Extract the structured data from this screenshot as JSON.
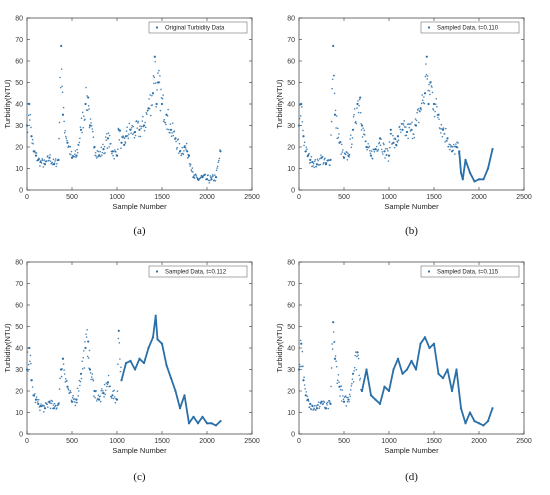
{
  "colors": {
    "series": "#2a6fa8",
    "axis": "#333333",
    "legend_border": "#555555"
  },
  "chart_data": [
    {
      "type": "scatter",
      "caption": "(a)",
      "xlabel": "Sample Number",
      "ylabel": "Turbidity(NTU)",
      "xlim": [
        0,
        2500
      ],
      "ylim": [
        0,
        80
      ],
      "xticks": [
        0,
        500,
        1000,
        1500,
        2000,
        2500
      ],
      "yticks": [
        0,
        10,
        20,
        30,
        40,
        50,
        60,
        70,
        80
      ],
      "legend": "top-right",
      "series": [
        {
          "name": "Original Turbidity Data",
          "style": "markers",
          "x": [
            0,
            25,
            50,
            75,
            100,
            125,
            150,
            200,
            250,
            300,
            350,
            380,
            400,
            450,
            500,
            550,
            600,
            650,
            680,
            700,
            750,
            800,
            850,
            900,
            950,
            1000,
            1020,
            1050,
            1080,
            1100,
            1150,
            1200,
            1250,
            1300,
            1350,
            1400,
            1420,
            1440,
            1460,
            1500,
            1550,
            1600,
            1650,
            1700,
            1750,
            1780,
            1800,
            1850,
            1900,
            1950,
            2000,
            2050,
            2100,
            2150
          ],
          "y": [
            30,
            40,
            25,
            18,
            16,
            14,
            13,
            12,
            15,
            12,
            14,
            67,
            35,
            22,
            15,
            16,
            28,
            40,
            43,
            30,
            20,
            16,
            19,
            24,
            18,
            16,
            28,
            22,
            21,
            25,
            28,
            27,
            28,
            30,
            38,
            45,
            62,
            40,
            50,
            40,
            35,
            28,
            24,
            18,
            20,
            18,
            16,
            6,
            5,
            6,
            5,
            5,
            6,
            18
          ]
        }
      ]
    },
    {
      "type": "scatter",
      "caption": "(b)",
      "xlabel": "Sample Number",
      "ylabel": "Turbidity(NTU)",
      "xlim": [
        0,
        2500
      ],
      "ylim": [
        0,
        80
      ],
      "xticks": [
        0,
        500,
        1000,
        1500,
        2000,
        2500
      ],
      "yticks": [
        0,
        10,
        20,
        30,
        40,
        50,
        60,
        70,
        80
      ],
      "legend": "top-right",
      "series": [
        {
          "name": "Sampled Data, t=0.110",
          "style": "markers+line-tail",
          "line_from_x": 1780,
          "x": [
            0,
            25,
            50,
            75,
            100,
            125,
            150,
            200,
            250,
            300,
            350,
            380,
            400,
            450,
            500,
            550,
            600,
            650,
            680,
            700,
            750,
            800,
            850,
            900,
            950,
            1000,
            1020,
            1050,
            1080,
            1100,
            1150,
            1200,
            1250,
            1300,
            1350,
            1400,
            1420,
            1440,
            1460,
            1500,
            1550,
            1600,
            1650,
            1700,
            1750,
            1780,
            1800,
            1820,
            1850,
            1900,
            1950,
            2000,
            2050,
            2100,
            2150
          ],
          "y": [
            30,
            40,
            25,
            18,
            16,
            14,
            13,
            12,
            15,
            12,
            14,
            67,
            35,
            22,
            15,
            16,
            28,
            40,
            43,
            30,
            20,
            16,
            19,
            24,
            18,
            16,
            28,
            22,
            21,
            25,
            28,
            27,
            28,
            30,
            38,
            45,
            62,
            40,
            50,
            40,
            35,
            28,
            24,
            18,
            20,
            18,
            8,
            5,
            14,
            8,
            4,
            5,
            5,
            10,
            19
          ]
        }
      ]
    },
    {
      "type": "scatter",
      "caption": "(c)",
      "xlabel": "Sample Number",
      "ylabel": "Turbidity(NTU)",
      "xlim": [
        0,
        2500
      ],
      "ylim": [
        0,
        80
      ],
      "xticks": [
        0,
        500,
        1000,
        1500,
        2000,
        2500
      ],
      "yticks": [
        0,
        10,
        20,
        30,
        40,
        50,
        60,
        70,
        80
      ],
      "legend": "top-right",
      "series": [
        {
          "name": "Sampled Data, t=0.112",
          "style": "markers+line-tail",
          "line_from_x": 1050,
          "x": [
            0,
            25,
            50,
            75,
            100,
            125,
            150,
            200,
            250,
            300,
            350,
            380,
            400,
            450,
            500,
            550,
            600,
            650,
            680,
            700,
            750,
            800,
            850,
            900,
            950,
            1000,
            1020,
            1050,
            1100,
            1150,
            1200,
            1250,
            1300,
            1350,
            1400,
            1430,
            1450,
            1500,
            1550,
            1600,
            1650,
            1700,
            1750,
            1800,
            1850,
            1900,
            1950,
            2000,
            2050,
            2100,
            2150
          ],
          "y": [
            30,
            40,
            25,
            18,
            16,
            14,
            13,
            12,
            15,
            12,
            14,
            30,
            35,
            22,
            15,
            16,
            28,
            40,
            43,
            30,
            20,
            16,
            19,
            24,
            18,
            16,
            48,
            25,
            33,
            34,
            30,
            35,
            33,
            40,
            45,
            55,
            44,
            42,
            32,
            26,
            20,
            12,
            18,
            5,
            8,
            5,
            8,
            5,
            5,
            4,
            6
          ]
        }
      ]
    },
    {
      "type": "scatter",
      "caption": "(d)",
      "xlabel": "Sample Number",
      "ylabel": "Turbidity(NTU)",
      "xlim": [
        0,
        2500
      ],
      "ylim": [
        0,
        80
      ],
      "xticks": [
        0,
        500,
        1000,
        1500,
        2000,
        2500
      ],
      "yticks": [
        0,
        10,
        20,
        30,
        40,
        50,
        60,
        70,
        80
      ],
      "legend": "top-right",
      "series": [
        {
          "name": "Sampled Data, t=0.115",
          "style": "markers+line-tail",
          "line_from_x": 700,
          "x": [
            0,
            25,
            50,
            75,
            100,
            125,
            150,
            200,
            250,
            300,
            350,
            380,
            400,
            450,
            500,
            550,
            600,
            650,
            700,
            750,
            800,
            850,
            900,
            950,
            1000,
            1050,
            1100,
            1150,
            1200,
            1250,
            1300,
            1350,
            1400,
            1450,
            1500,
            1550,
            1600,
            1650,
            1700,
            1750,
            1800,
            1850,
            1900,
            1950,
            2000,
            2050,
            2100,
            2150
          ],
          "y": [
            30,
            42,
            25,
            18,
            16,
            14,
            13,
            12,
            15,
            12,
            14,
            52,
            35,
            22,
            15,
            16,
            28,
            38,
            20,
            30,
            18,
            16,
            14,
            22,
            20,
            30,
            35,
            28,
            30,
            34,
            30,
            42,
            45,
            40,
            42,
            28,
            26,
            30,
            20,
            30,
            12,
            5,
            10,
            6,
            5,
            4,
            6,
            12
          ]
        }
      ]
    }
  ]
}
